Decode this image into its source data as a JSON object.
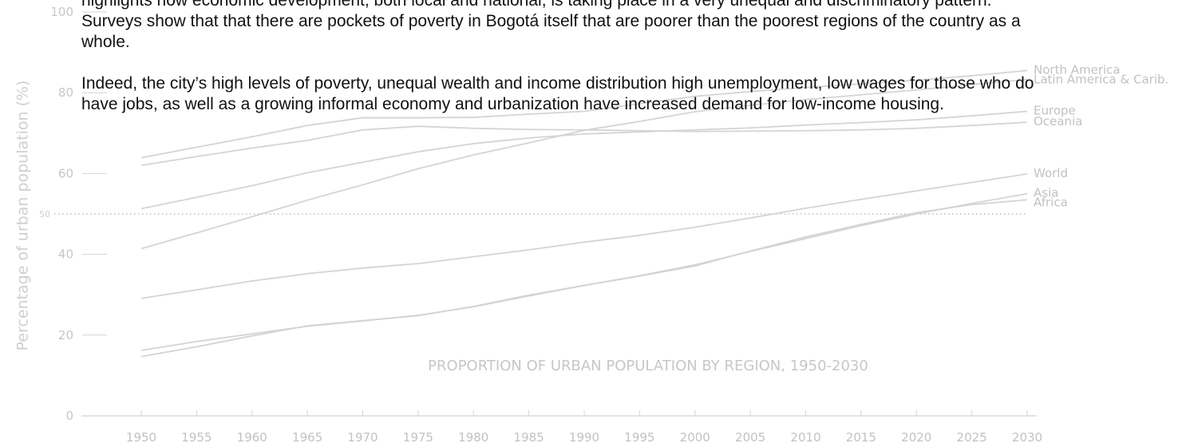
{
  "article": {
    "paragraphs": [
      "highlights how economic development, both local and national, is taking place in a very unequal and discriminatory pattern. Surveys show that that there are pockets of poverty in Bogotá itself that are poorer than the poorest regions of the country as a whole.",
      "Indeed, the city’s high levels of poverty, unequal wealth and income distribution high unemployment, low wages for those who do have jobs, as well as a growing informal economy and urbanization have increased demand for low-income housing."
    ]
  },
  "chart_data": {
    "type": "line",
    "title": "PROPORTION OF URBAN POPULATION BY REGION, 1950-2030",
    "ylabel": "Percentage of urban population (%)",
    "xlabel": "",
    "x": [
      1950,
      1955,
      1960,
      1965,
      1970,
      1975,
      1980,
      1985,
      1990,
      1995,
      2000,
      2005,
      2010,
      2015,
      2020,
      2025,
      2030
    ],
    "xlim": [
      1950,
      2030
    ],
    "ylim": [
      0,
      100
    ],
    "yticks": [
      0,
      20,
      40,
      50,
      60,
      80,
      100
    ],
    "reference_line": 50,
    "grid": false,
    "legend": "labels at line ends (right)",
    "line_color": "#d4d4d4",
    "series": [
      {
        "name": "North America",
        "values": [
          63.9,
          66.5,
          69.1,
          71.9,
          73.8,
          73.8,
          73.9,
          74.7,
          75.4,
          77.3,
          79.1,
          80.3,
          81.3,
          82.2,
          83.1,
          84.2,
          85.5
        ]
      },
      {
        "name": "Latin America & Carib.",
        "values": [
          41.4,
          45.3,
          49.3,
          53.4,
          57.2,
          61.2,
          64.6,
          67.6,
          70.7,
          72.9,
          75.3,
          76.9,
          78.3,
          79.5,
          80.7,
          82.0,
          83.3
        ]
      },
      {
        "name": "Europe",
        "values": [
          51.3,
          54.1,
          57.0,
          60.2,
          62.8,
          65.4,
          67.4,
          68.8,
          69.8,
          70.3,
          70.8,
          71.3,
          72.0,
          72.6,
          73.3,
          74.3,
          75.4
        ]
      },
      {
        "name": "Oceania",
        "values": [
          62.0,
          64.2,
          66.3,
          68.2,
          70.8,
          71.7,
          71.2,
          70.9,
          70.8,
          70.6,
          70.4,
          70.5,
          70.6,
          70.8,
          71.2,
          71.9,
          72.7
        ]
      },
      {
        "name": "World",
        "values": [
          29.1,
          31.2,
          33.4,
          35.2,
          36.6,
          37.7,
          39.4,
          41.1,
          43.0,
          44.7,
          46.7,
          49.0,
          51.4,
          53.6,
          55.7,
          57.8,
          59.9
        ]
      },
      {
        "name": "Asia",
        "values": [
          16.2,
          18.4,
          20.3,
          22.2,
          23.5,
          24.9,
          27.0,
          29.7,
          32.3,
          34.7,
          37.4,
          40.7,
          43.9,
          47.1,
          50.0,
          52.6,
          55.0
        ]
      },
      {
        "name": "Africa",
        "values": [
          14.7,
          17.1,
          19.8,
          22.3,
          23.6,
          24.8,
          27.1,
          29.9,
          32.3,
          34.6,
          37.1,
          40.8,
          44.3,
          47.4,
          50.3,
          52.3,
          53.5
        ]
      }
    ]
  }
}
